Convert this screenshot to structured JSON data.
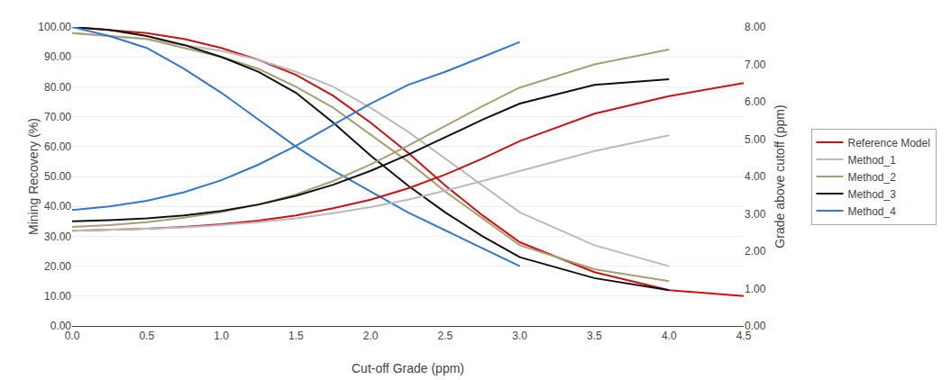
{
  "chart_data": {
    "type": "line",
    "xlabel": "Cut-off Grade (ppm)",
    "ylabel": "Mining Recovery (%)",
    "y2label": "Grade above cutoff (ppm)",
    "x": [
      0,
      0.25,
      0.5,
      0.75,
      1.0,
      1.25,
      1.5,
      1.75,
      2.0,
      2.25,
      2.5,
      2.75,
      3.0,
      3.5,
      4.0,
      4.5
    ],
    "xlim": [
      0,
      4.5
    ],
    "xticks": [
      {
        "value": 0,
        "label": "0.0"
      },
      0.5,
      {
        "value": 1,
        "label": "1.0"
      },
      1.5,
      {
        "value": 2,
        "label": "2.0"
      },
      2.5,
      {
        "value": 3,
        "label": "3.0"
      },
      3.5,
      {
        "value": 4,
        "label": "4.0"
      },
      4.5
    ],
    "ylim": [
      0,
      100
    ],
    "yticks": [
      {
        "value": 0,
        "label": "0.00"
      },
      {
        "value": 10,
        "label": "10.00"
      },
      {
        "value": 20,
        "label": "20.00"
      },
      {
        "value": 30,
        "label": "30.00"
      },
      {
        "value": 40,
        "label": "40.00"
      },
      {
        "value": 50,
        "label": "50.00"
      },
      {
        "value": 60,
        "label": "60.00"
      },
      {
        "value": 70,
        "label": "70.00"
      },
      {
        "value": 80,
        "label": "80.00"
      },
      {
        "value": 90,
        "label": "90.00"
      },
      {
        "value": 100,
        "label": "100.00"
      }
    ],
    "y2lim": [
      0,
      8.0
    ],
    "y2ticks": [
      {
        "value": 0,
        "label": "0.00"
      },
      {
        "value": 1,
        "label": "1.00"
      },
      {
        "value": 2,
        "label": "2.00"
      },
      {
        "value": 3,
        "label": "3.00"
      },
      {
        "value": 4,
        "label": "4.00"
      },
      {
        "value": 5,
        "label": "5.00"
      },
      {
        "value": 6,
        "label": "6.00"
      },
      {
        "value": 7,
        "label": "7.00"
      },
      {
        "value": 8,
        "label": "8.00"
      }
    ],
    "grid": true,
    "legend": "right",
    "series": [
      {
        "name": "Reference Model",
        "color": "#cc1111",
        "values": [
          100,
          99,
          98,
          96,
          93,
          89,
          84,
          77,
          68,
          58,
          47,
          37,
          28,
          18,
          12,
          10
        ]
      },
      {
        "name": "Method_1",
        "color": "#bbbbbb",
        "values": [
          98,
          97,
          96,
          94,
          92,
          89,
          85,
          80,
          73,
          65,
          56,
          47,
          38,
          27,
          20,
          null
        ]
      },
      {
        "name": "Method_2",
        "color": "#a8a070",
        "values": [
          98,
          97,
          96,
          93,
          90,
          86,
          80,
          73,
          64,
          55,
          45,
          36,
          27,
          19,
          15,
          null
        ]
      },
      {
        "name": "Method_3",
        "color": "#111111",
        "values": [
          100,
          99,
          97,
          94,
          90,
          85,
          78,
          68,
          57,
          47,
          38,
          30,
          23,
          16,
          12,
          null
        ]
      },
      {
        "name": "Method_4",
        "color": "#3377cc",
        "values": [
          100,
          97,
          93,
          86,
          78,
          69,
          60,
          52,
          45,
          38,
          32,
          26,
          20,
          null,
          null,
          null
        ]
      },
      {
        "color": "#cc1111",
        "axis": "y2",
        "values": [
          2.55,
          2.57,
          2.6,
          2.65,
          2.72,
          2.82,
          2.96,
          3.15,
          3.38,
          3.68,
          4.05,
          4.48,
          4.95,
          5.68,
          6.15,
          6.5
        ]
      },
      {
        "color": "#bbbbbb",
        "axis": "y2",
        "values": [
          2.55,
          2.57,
          2.6,
          2.64,
          2.7,
          2.78,
          2.88,
          3.02,
          3.18,
          3.38,
          3.62,
          3.88,
          4.15,
          4.68,
          5.1,
          null
        ]
      },
      {
        "color": "#a8a070",
        "axis": "y2",
        "values": [
          2.65,
          2.7,
          2.78,
          2.9,
          3.05,
          3.25,
          3.52,
          3.88,
          4.32,
          4.82,
          5.35,
          5.88,
          6.38,
          7.0,
          7.4,
          null
        ]
      },
      {
        "color": "#111111",
        "axis": "y2",
        "values": [
          2.8,
          2.83,
          2.88,
          2.96,
          3.08,
          3.25,
          3.48,
          3.78,
          4.15,
          4.58,
          5.05,
          5.52,
          5.95,
          6.45,
          6.6,
          null
        ]
      },
      {
        "color": "#3377cc",
        "axis": "y2",
        "values": [
          3.1,
          3.2,
          3.35,
          3.58,
          3.9,
          4.32,
          4.82,
          5.38,
          5.95,
          6.45,
          6.8,
          7.2,
          7.6,
          null,
          null,
          null
        ]
      }
    ]
  }
}
